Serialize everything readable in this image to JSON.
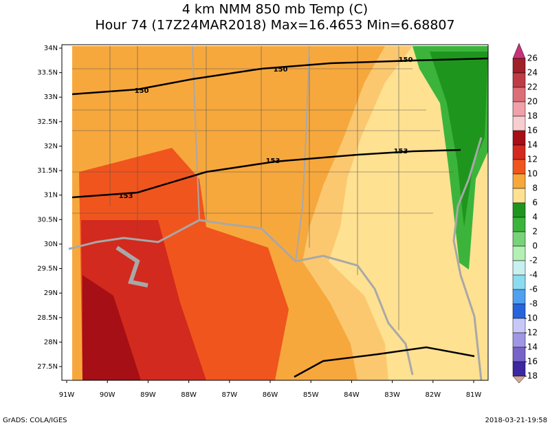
{
  "title": {
    "line1": "4 km NMM 850 mb Temp (C)",
    "line2": "Hour 74 (17Z24MAR2018) Max=16.4653 Min=6.68807"
  },
  "axes": {
    "lat": [
      "34N",
      "33.5N",
      "33N",
      "32.5N",
      "32N",
      "31.5N",
      "31N",
      "30.5N",
      "30N",
      "29.5N",
      "29N",
      "28.5N",
      "28N",
      "27.5N"
    ],
    "lon": [
      "91W",
      "90W",
      "89W",
      "88W",
      "87W",
      "86W",
      "85W",
      "84W",
      "83W",
      "82W",
      "81W"
    ]
  },
  "contour_labels": [
    "150",
    "150",
    "150",
    "153",
    "153",
    "153"
  ],
  "colorbar": {
    "labels": [
      26,
      24,
      22,
      20,
      18,
      16,
      14,
      12,
      10,
      8,
      6,
      4,
      2,
      0,
      -2,
      -4,
      -6,
      -8,
      -10,
      -12,
      -14,
      -16,
      -18
    ],
    "colors": [
      "#c8327a",
      "#a0202a",
      "#be3c46",
      "#dc6e78",
      "#f0a0a8",
      "#f7cdd0",
      "#a50f15",
      "#d22a1e",
      "#f0551e",
      "#f7a83c",
      "#fee191",
      "#1e961e",
      "#3cb43c",
      "#78d278",
      "#b4f0b4",
      "#c8f0f0",
      "#8cdcf0",
      "#50a0f0",
      "#2864dc",
      "#c8c8f8",
      "#a096e6",
      "#7864c8",
      "#3c28a0",
      "#d2aa96"
    ]
  },
  "footer": {
    "left": "GrADS: COLA/IGES",
    "right": "2018-03-21-19:58"
  }
}
